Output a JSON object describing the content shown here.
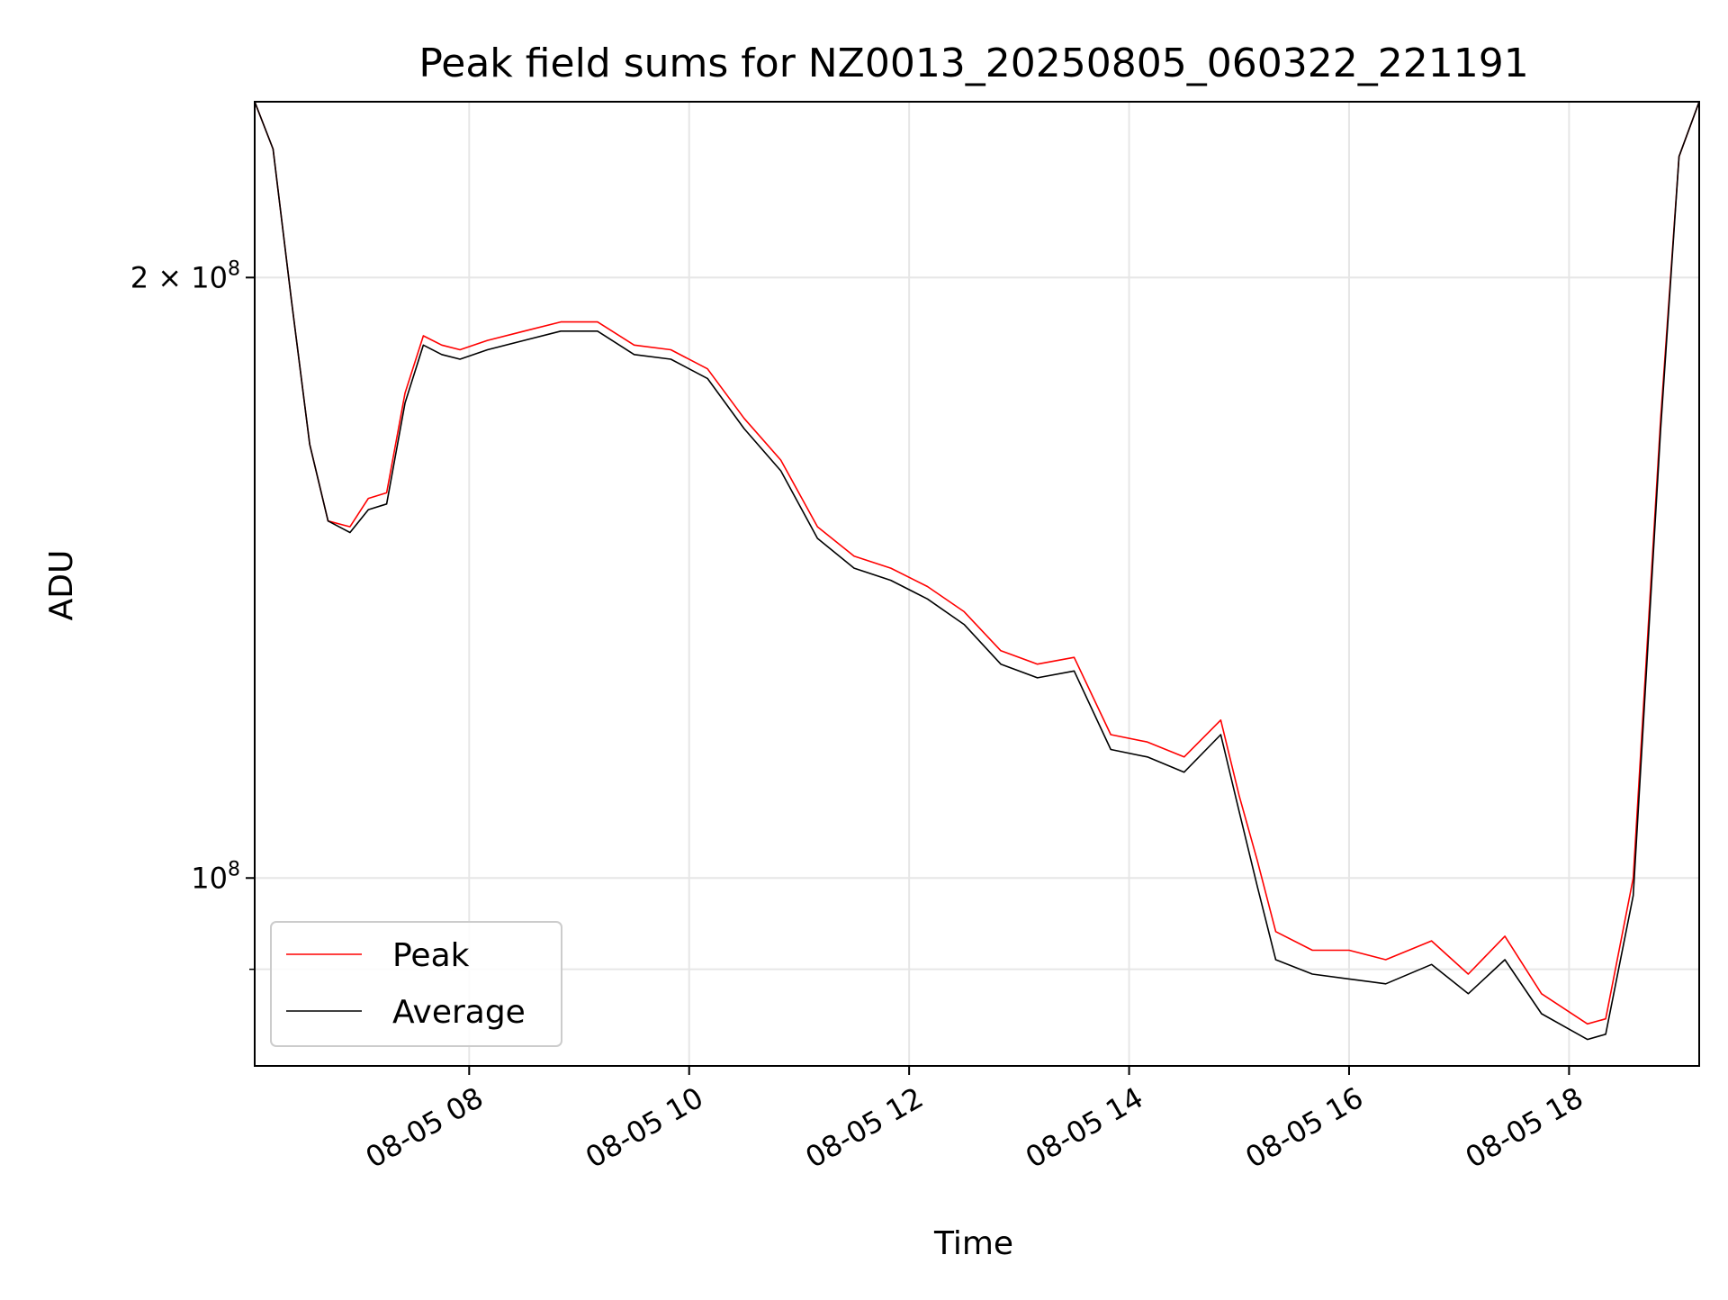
{
  "chart_data": {
    "type": "line",
    "title": "Peak field sums for NZ0013_20250805_060322_221191",
    "xlabel": "Time",
    "ylabel": "ADU",
    "yscale": "log",
    "ylim": [
      80500000,
      245000000
    ],
    "xlim": [
      "08-05 06:03",
      "08-05 19:11"
    ],
    "grid": true,
    "legend": "lower-left",
    "x_ticks": [
      {
        "value": "08-05 08:00",
        "label": "08-05 08"
      },
      {
        "value": "08-05 10:00",
        "label": "08-05 10"
      },
      {
        "value": "08-05 12:00",
        "label": "08-05 12"
      },
      {
        "value": "08-05 14:00",
        "label": "08-05 14"
      },
      {
        "value": "08-05 16:00",
        "label": "08-05 16"
      },
      {
        "value": "08-05 18:00",
        "label": "08-05 18"
      }
    ],
    "y_ticks": [
      {
        "value": 100000000,
        "base": "10",
        "exp": "8"
      },
      {
        "value": 200000000,
        "base": "2 × 10",
        "exp": "8"
      }
    ],
    "y_minor_ticks": [
      90000000
    ],
    "series": [
      {
        "name": "Peak",
        "color": "#ff0000",
        "points": [
          [
            "08-05 06:03",
            245000000
          ],
          [
            "08-05 06:13",
            232000000
          ],
          [
            "08-05 06:23",
            195000000
          ],
          [
            "08-05 06:33",
            165000000
          ],
          [
            "08-05 06:43",
            151000000
          ],
          [
            "08-05 06:55",
            150000000
          ],
          [
            "08-05 07:05",
            155000000
          ],
          [
            "08-05 07:15",
            156000000
          ],
          [
            "08-05 07:25",
            175000000
          ],
          [
            "08-05 07:35",
            187000000
          ],
          [
            "08-05 07:45",
            185000000
          ],
          [
            "08-05 07:55",
            184000000
          ],
          [
            "08-05 08:10",
            186000000
          ],
          [
            "08-05 08:30",
            188000000
          ],
          [
            "08-05 08:50",
            190000000
          ],
          [
            "08-05 09:10",
            190000000
          ],
          [
            "08-05 09:30",
            185000000
          ],
          [
            "08-05 09:50",
            184000000
          ],
          [
            "08-05 10:10",
            180000000
          ],
          [
            "08-05 10:30",
            170000000
          ],
          [
            "08-05 10:50",
            162000000
          ],
          [
            "08-05 11:10",
            150000000
          ],
          [
            "08-05 11:30",
            145000000
          ],
          [
            "08-05 11:50",
            143000000
          ],
          [
            "08-05 12:10",
            140000000
          ],
          [
            "08-05 12:30",
            136000000
          ],
          [
            "08-05 12:50",
            130000000
          ],
          [
            "08-05 13:10",
            128000000
          ],
          [
            "08-05 13:30",
            129000000
          ],
          [
            "08-05 13:50",
            118000000
          ],
          [
            "08-05 14:10",
            117000000
          ],
          [
            "08-05 14:30",
            115000000
          ],
          [
            "08-05 14:50",
            120000000
          ],
          [
            "08-05 15:00",
            110000000
          ],
          [
            "08-05 15:10",
            102000000
          ],
          [
            "08-05 15:20",
            94000000
          ],
          [
            "08-05 15:40",
            92000000
          ],
          [
            "08-05 16:00",
            92000000
          ],
          [
            "08-05 16:20",
            91000000
          ],
          [
            "08-05 16:45",
            93000000
          ],
          [
            "08-05 17:05",
            89500000
          ],
          [
            "08-05 17:25",
            93500000
          ],
          [
            "08-05 17:45",
            87500000
          ],
          [
            "08-05 18:10",
            84500000
          ],
          [
            "08-05 18:20",
            85000000
          ],
          [
            "08-05 18:35",
            100000000
          ],
          [
            "08-05 18:50",
            170000000
          ],
          [
            "08-05 19:00",
            230000000
          ],
          [
            "08-05 19:11",
            245000000
          ]
        ]
      },
      {
        "name": "Average",
        "color": "#000000",
        "points": [
          [
            "08-05 06:03",
            245000000
          ],
          [
            "08-05 06:13",
            232000000
          ],
          [
            "08-05 06:23",
            195000000
          ],
          [
            "08-05 06:33",
            165000000
          ],
          [
            "08-05 06:43",
            151000000
          ],
          [
            "08-05 06:55",
            149000000
          ],
          [
            "08-05 07:05",
            153000000
          ],
          [
            "08-05 07:15",
            154000000
          ],
          [
            "08-05 07:25",
            173000000
          ],
          [
            "08-05 07:35",
            185000000
          ],
          [
            "08-05 07:45",
            183000000
          ],
          [
            "08-05 07:55",
            182000000
          ],
          [
            "08-05 08:10",
            184000000
          ],
          [
            "08-05 08:30",
            186000000
          ],
          [
            "08-05 08:50",
            188000000
          ],
          [
            "08-05 09:10",
            188000000
          ],
          [
            "08-05 09:30",
            183000000
          ],
          [
            "08-05 09:50",
            182000000
          ],
          [
            "08-05 10:10",
            178000000
          ],
          [
            "08-05 10:30",
            168000000
          ],
          [
            "08-05 10:50",
            160000000
          ],
          [
            "08-05 11:10",
            148000000
          ],
          [
            "08-05 11:30",
            143000000
          ],
          [
            "08-05 11:50",
            141000000
          ],
          [
            "08-05 12:10",
            138000000
          ],
          [
            "08-05 12:30",
            134000000
          ],
          [
            "08-05 12:50",
            128000000
          ],
          [
            "08-05 13:10",
            126000000
          ],
          [
            "08-05 13:30",
            127000000
          ],
          [
            "08-05 13:50",
            116000000
          ],
          [
            "08-05 14:10",
            115000000
          ],
          [
            "08-05 14:30",
            113000000
          ],
          [
            "08-05 14:50",
            118000000
          ],
          [
            "08-05 15:00",
            108000000
          ],
          [
            "08-05 15:10",
            99000000
          ],
          [
            "08-05 15:20",
            91000000
          ],
          [
            "08-05 15:40",
            89500000
          ],
          [
            "08-05 16:00",
            89000000
          ],
          [
            "08-05 16:20",
            88500000
          ],
          [
            "08-05 16:45",
            90500000
          ],
          [
            "08-05 17:05",
            87500000
          ],
          [
            "08-05 17:25",
            91000000
          ],
          [
            "08-05 17:45",
            85500000
          ],
          [
            "08-05 18:10",
            83000000
          ],
          [
            "08-05 18:20",
            83500000
          ],
          [
            "08-05 18:35",
            98000000
          ],
          [
            "08-05 18:50",
            168000000
          ],
          [
            "08-05 19:00",
            230000000
          ],
          [
            "08-05 19:11",
            245000000
          ]
        ]
      }
    ]
  }
}
